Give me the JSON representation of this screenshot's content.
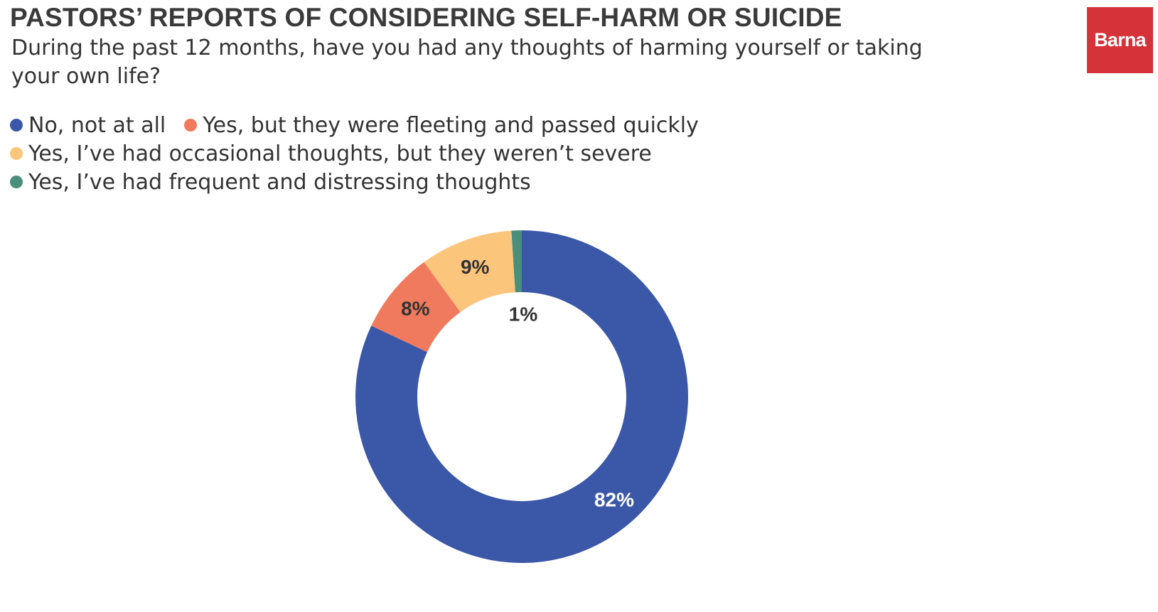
{
  "title": "PASTORS’ REPORTS OF CONSIDERING SELF-HARM OR SUICIDE",
  "subtitle": "During the past 12 months, have you had any thoughts of harming yourself or taking your own life?",
  "logo_text": "Barna",
  "colors": {
    "logo_bg": "#d6323a",
    "no": "#3b57a7",
    "fleeting": "#f07a5e",
    "occasional": "#fcc57c",
    "frequent": "#4a8f7c"
  },
  "chart_data": {
    "type": "pie",
    "donut": true,
    "title": "PASTORS’ REPORTS OF CONSIDERING SELF-HARM OR SUICIDE",
    "legend_position": "top-left",
    "slices": [
      {
        "key": "no",
        "label": "No, not at all",
        "value": 82,
        "value_label": "82%",
        "color": "#3b57a7",
        "label_color": "#ffffff"
      },
      {
        "key": "fleeting",
        "label": "Yes, but they were fleeting and passed quickly",
        "value": 8,
        "value_label": "8%",
        "color": "#f07a5e",
        "label_color": "#333333"
      },
      {
        "key": "occasional",
        "label": "Yes, I’ve had occasional thoughts, but they weren’t severe",
        "value": 9,
        "value_label": "9%",
        "color": "#fcc57c",
        "label_color": "#333333"
      },
      {
        "key": "frequent",
        "label": "Yes, I’ve had frequent and distressing thoughts",
        "value": 1,
        "value_label": "1%",
        "color": "#4a8f7c",
        "label_color": "#333333"
      }
    ]
  }
}
